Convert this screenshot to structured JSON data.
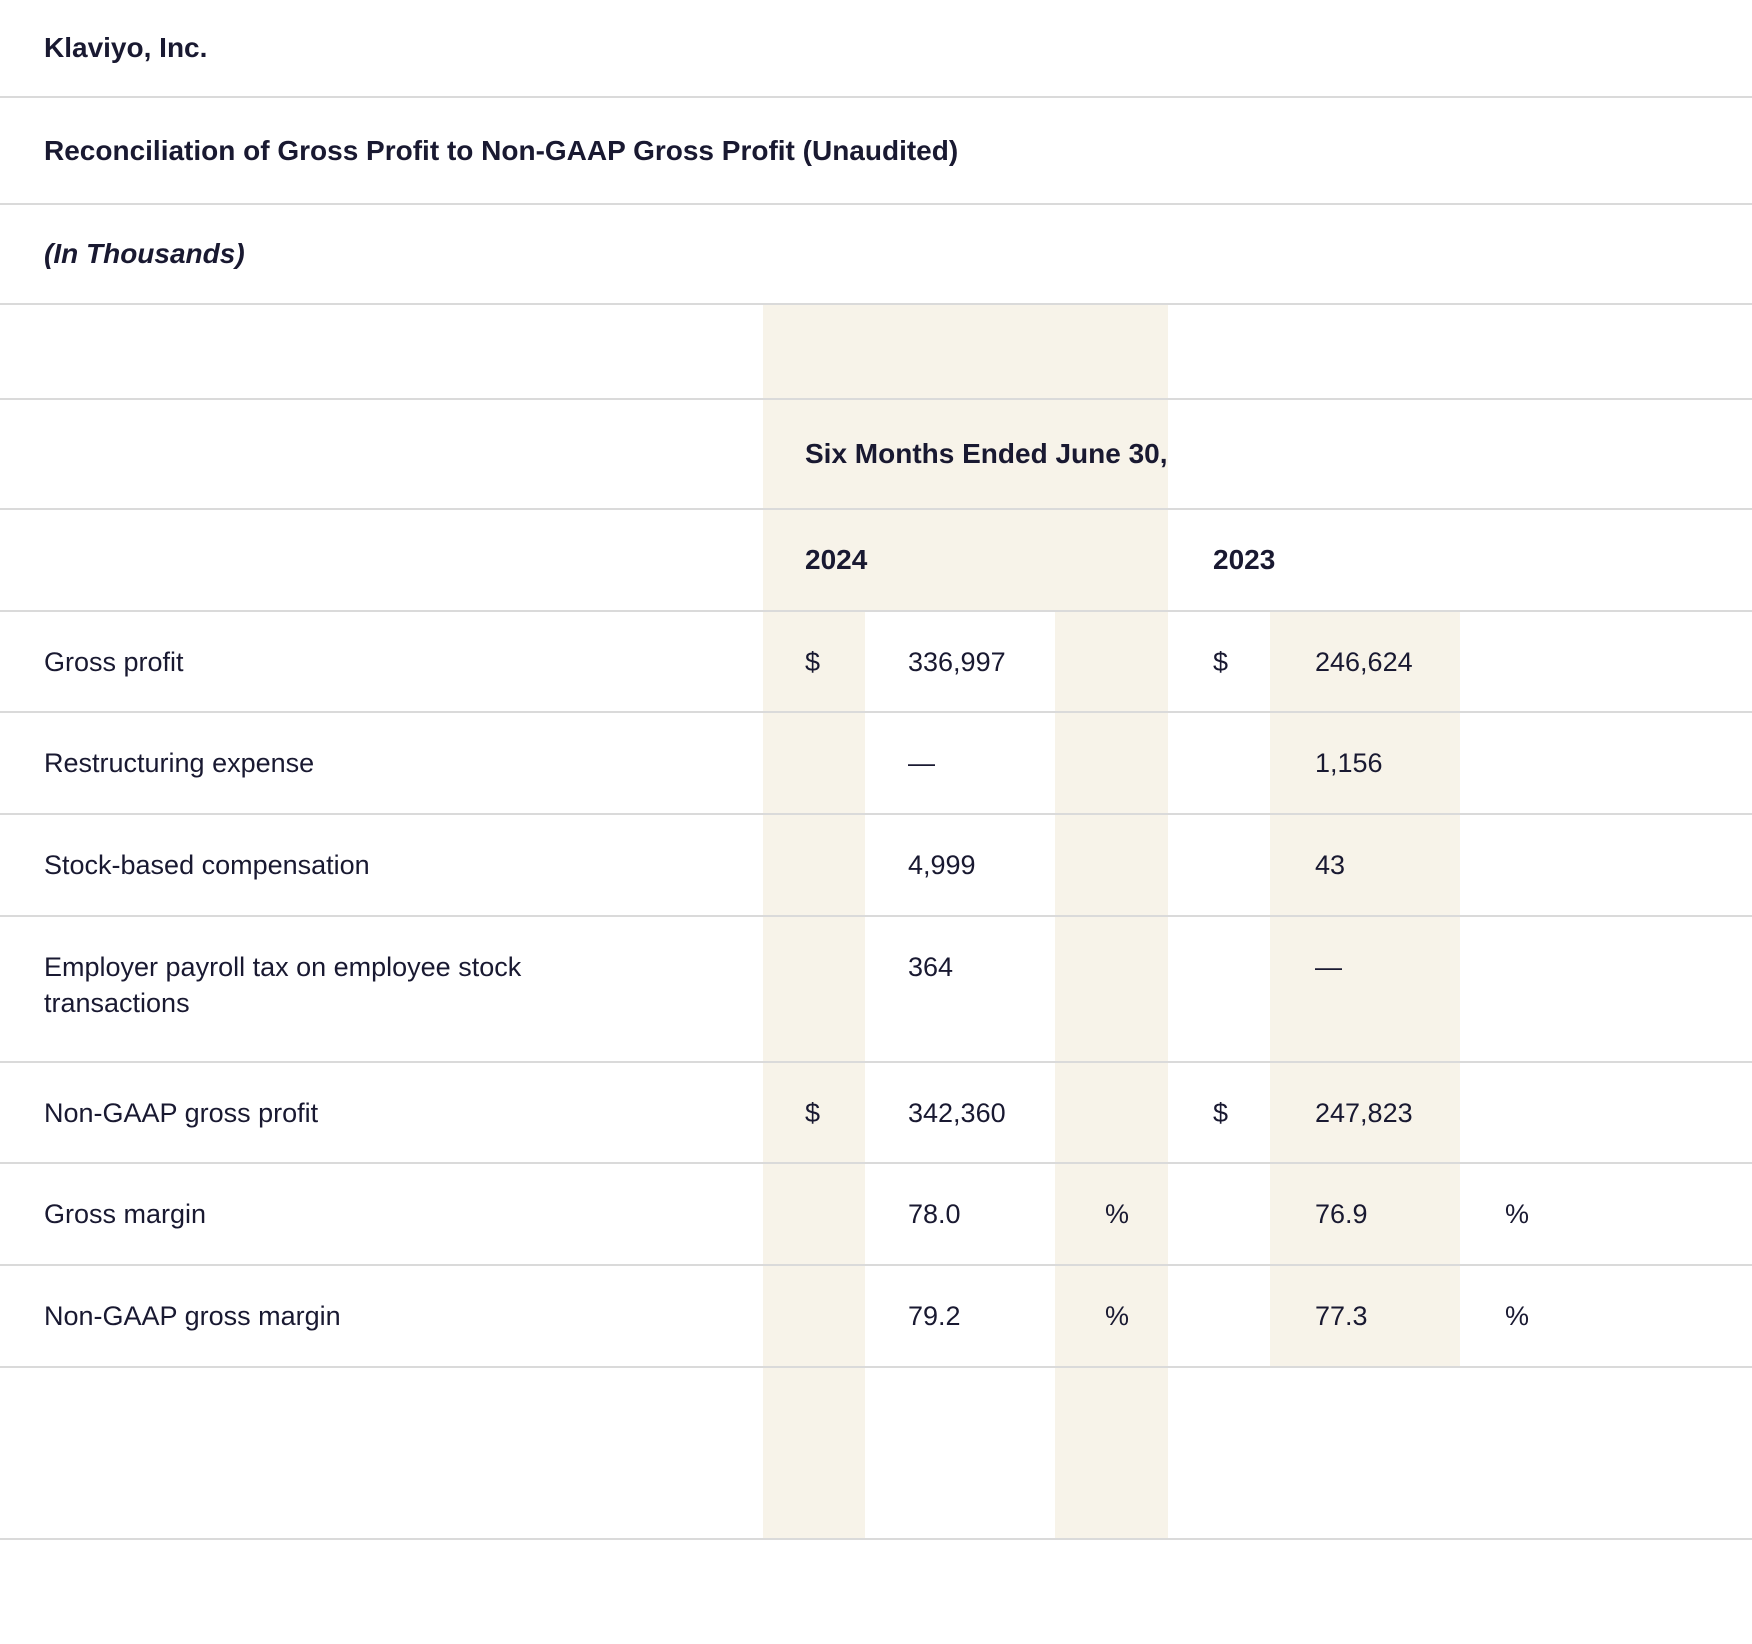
{
  "meta": {
    "company": "Klaviyo, Inc.",
    "title": "Reconciliation of Gross Profit to Non-GAAP Gross Profit (Unaudited)",
    "units": "(In Thousands)"
  },
  "colors": {
    "highlight_band": "#f7f3e9",
    "text": "#191931",
    "divider": "#dadada"
  },
  "table": {
    "period_header": "Six Months Ended June 30,",
    "years": [
      "2024",
      "2023"
    ],
    "rows": [
      {
        "label": "Gross profit",
        "d1": "$",
        "v1": "336,997",
        "d2": "$",
        "v2": "246,624"
      },
      {
        "label": "Restructuring expense",
        "v1": "—",
        "v2": "1,156"
      },
      {
        "label": "Stock-based compensation",
        "v1": "4,999",
        "v2": "43"
      },
      {
        "label": "Employer payroll tax on employee stock transactions",
        "v1": "364",
        "v2": "—"
      },
      {
        "label": "Non-GAAP gross profit",
        "d1": "$",
        "v1": "342,360",
        "d2": "$",
        "v2": "247,823"
      },
      {
        "label": "Gross margin",
        "v1": "78.0",
        "p1": "%",
        "v2": "76.9",
        "p2": "%"
      },
      {
        "label": "Non-GAAP gross margin",
        "v1": "79.2",
        "p1": "%",
        "v2": "77.3",
        "p2": "%"
      }
    ]
  }
}
